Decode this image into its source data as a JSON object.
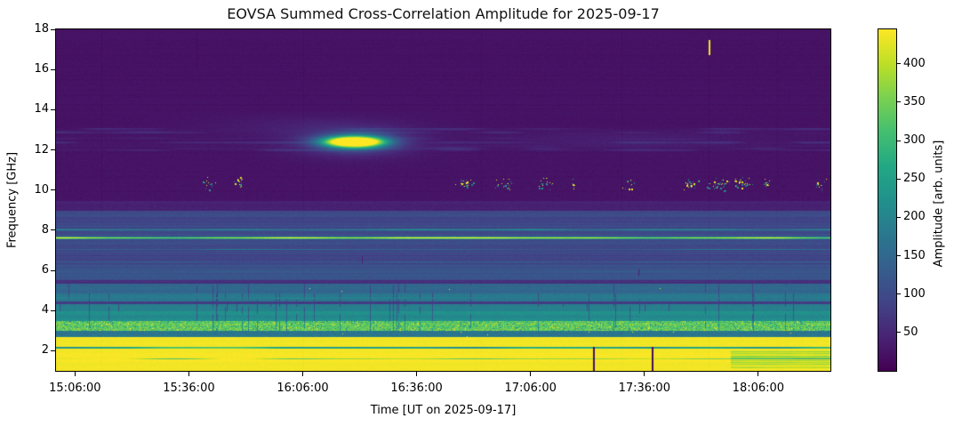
{
  "chart_data": {
    "type": "heatmap",
    "title": "EOVSA Summed Cross-Correlation Amplitude for 2025-09-17",
    "xlabel": "Time [UT on 2025-09-17]",
    "ylabel": "Frequency [GHz]",
    "colormap": {
      "name": "viridis",
      "stops": [
        [
          0,
          "#440154"
        ],
        [
          0.1,
          "#482475"
        ],
        [
          0.2,
          "#414487"
        ],
        [
          0.3,
          "#355f8d"
        ],
        [
          0.4,
          "#2a788e"
        ],
        [
          0.5,
          "#21918c"
        ],
        [
          0.6,
          "#22a884"
        ],
        [
          0.7,
          "#44bf70"
        ],
        [
          0.8,
          "#7ad151"
        ],
        [
          0.9,
          "#bddf26"
        ],
        [
          1,
          "#fde725"
        ]
      ]
    },
    "colorbar": {
      "label": "Amplitude [arb. units]",
      "ticks": [
        50,
        100,
        150,
        200,
        250,
        300,
        350,
        400
      ],
      "range": [
        0,
        445
      ]
    },
    "x_ticks": [
      {
        "label": "15:06:00",
        "t": 5
      },
      {
        "label": "15:36:00",
        "t": 35
      },
      {
        "label": "16:06:00",
        "t": 65
      },
      {
        "label": "16:36:00",
        "t": 95
      },
      {
        "label": "17:06:00",
        "t": 125
      },
      {
        "label": "17:36:00",
        "t": 155
      },
      {
        "label": "18:06:00",
        "t": 185
      }
    ],
    "x_span_min": 204,
    "y_ticks": [
      2,
      4,
      6,
      8,
      10,
      12,
      14,
      16,
      18
    ],
    "y_range": [
      1,
      18
    ],
    "grid": false,
    "seed": 7,
    "bands": [
      {
        "hi": 18.0,
        "lo": 13.1,
        "a": 22,
        "rj": 2.5,
        "cj": 4
      },
      {
        "hi": 13.1,
        "lo": 11.95,
        "a": 26,
        "rj": 3,
        "cj": 5,
        "patch": 42
      },
      {
        "hi": 11.95,
        "lo": 9.45,
        "a": 24,
        "rj": 2.5,
        "cj": 5
      },
      {
        "hi": 9.45,
        "lo": 8.95,
        "a": 40,
        "rj": 5,
        "cj": 6
      },
      {
        "hi": 8.95,
        "lo": 8.1,
        "a": 95,
        "rj": 13,
        "cj": 8
      },
      {
        "hi": 8.1,
        "lo": 7.3,
        "a": 103,
        "rj": 11,
        "cj": 8
      },
      {
        "hi": 7.3,
        "lo": 6.25,
        "a": 95,
        "rj": 11,
        "cj": 8
      },
      {
        "hi": 6.25,
        "lo": 5.5,
        "a": 112,
        "rj": 13,
        "cj": 8
      },
      {
        "hi": 5.5,
        "lo": 5.35,
        "a": 62,
        "rj": 5,
        "cj": 6
      },
      {
        "hi": 5.35,
        "lo": 4.85,
        "a": 148,
        "rj": 12,
        "cj": 10,
        "vl": {
          "p": 0.02,
          "m": 0.6
        }
      },
      {
        "hi": 4.85,
        "lo": 4.45,
        "a": 178,
        "rj": 10,
        "cj": 10,
        "vl": {
          "p": 0.05,
          "m": 0.55
        }
      },
      {
        "hi": 4.45,
        "lo": 4.3,
        "a": 80,
        "rj": 5,
        "cj": 8
      },
      {
        "hi": 4.3,
        "lo": 3.95,
        "a": 192,
        "rj": 10,
        "cj": 10,
        "vl": {
          "p": 0.06,
          "m": 0.55
        }
      },
      {
        "hi": 3.95,
        "lo": 3.5,
        "a": 215,
        "rj": 12,
        "cj": 12,
        "vl": {
          "p": 0.05,
          "m": 0.6
        }
      },
      {
        "hi": 3.5,
        "lo": 3.0,
        "a": 330,
        "rj": 15,
        "cj": 40,
        "sp": true,
        "vl": {
          "p": 0.04,
          "m": 0.65
        }
      },
      {
        "hi": 3.0,
        "lo": 2.7,
        "a": 180,
        "rj": 10,
        "cj": 20
      },
      {
        "hi": 2.7,
        "lo": 0.9,
        "a": 438,
        "rj": 5,
        "cj": 5
      }
    ],
    "h_lines": [
      {
        "f": 8.03,
        "hw": 0.07,
        "a": 205,
        "cj": 25
      },
      {
        "f": 7.62,
        "hw": 0.08,
        "a": 400,
        "cj": 30
      },
      {
        "f": 7.05,
        "hw": 0.05,
        "a": 170,
        "cj": 20
      },
      {
        "f": 6.42,
        "hw": 0.05,
        "a": 140,
        "cj": 15
      },
      {
        "f": 5.95,
        "hw": 0.06,
        "a": 142,
        "cj": 15
      },
      {
        "f": 4.62,
        "hw": 0.05,
        "a": 205,
        "cj": 15
      },
      {
        "f": 2.15,
        "hw": 0.05,
        "a": 390,
        "cj": 8,
        "mode": "dark"
      },
      {
        "f": 1.6,
        "hw": 0.04,
        "a": 398,
        "cj": 8,
        "mode": "dark"
      }
    ],
    "features": {
      "ellipses": [
        {
          "t": 78.5,
          "f": 12.42,
          "rx": 16,
          "ry": 0.75,
          "a": 35
        },
        {
          "t": 78.5,
          "f": 12.42,
          "rx": 11,
          "ry": 0.5,
          "a": 80
        },
        {
          "t": 78.5,
          "f": 12.42,
          "rx": 8.5,
          "ry": 0.33,
          "a": 190
        },
        {
          "t": 78.5,
          "f": 12.42,
          "rx": 6.5,
          "ry": 0.22,
          "a": 480
        },
        {
          "t": 66,
          "f": 13.25,
          "rx": 26,
          "ry": 0.45,
          "a": 16
        },
        {
          "t": 150,
          "f": 12.5,
          "rx": 30,
          "ry": 0.4,
          "a": 14
        }
      ],
      "speckle_clusters": [
        {
          "t": 40,
          "w": 2.5,
          "n": 12
        },
        {
          "t": 48.5,
          "w": 2.5,
          "n": 16
        },
        {
          "t": 108,
          "w": 4,
          "n": 26
        },
        {
          "t": 118,
          "w": 3.5,
          "n": 20
        },
        {
          "t": 129,
          "w": 3,
          "n": 16
        },
        {
          "t": 136,
          "w": 1.5,
          "n": 6
        },
        {
          "t": 151,
          "w": 2.5,
          "n": 14
        },
        {
          "t": 167,
          "w": 4,
          "n": 20
        },
        {
          "t": 174,
          "w": 5,
          "n": 34
        },
        {
          "t": 181,
          "w": 4,
          "n": 28
        },
        {
          "t": 187,
          "w": 2,
          "n": 10
        },
        {
          "t": 201,
          "w": 2.5,
          "n": 12
        }
      ],
      "speckle_freq": 10.32,
      "speckle_h": 0.4,
      "speckle_yellow_frac": 0.45,
      "row_dots": [
        {
          "f": 5.1,
          "h": 0.1,
          "density": 0.012,
          "a": 430
        },
        {
          "f": 2.85,
          "h": 0.12,
          "density": 0.02,
          "a": 440
        }
      ],
      "v_dashes": [
        {
          "t": 172,
          "f1": 16.75,
          "f2": 17.45,
          "a": 440,
          "w": 2,
          "mode": "set"
        },
        {
          "t": 141.5,
          "f1": 0.9,
          "f2": 2.2,
          "a": 15,
          "w": 2,
          "mode": "set"
        },
        {
          "t": 157,
          "f1": 0.9,
          "f2": 2.2,
          "a": 15,
          "w": 2,
          "mode": "set"
        },
        {
          "t": 80.6,
          "f1": 6.4,
          "f2": 6.7,
          "a": 40,
          "w": 1,
          "mode": "set"
        },
        {
          "t": 153.5,
          "f1": 5.8,
          "f2": 6.05,
          "a": 40,
          "w": 1,
          "mode": "set"
        },
        {
          "t": 37,
          "f1": 16.0,
          "f2": 18.0,
          "a": -8,
          "w": 1,
          "mode": "add"
        }
      ],
      "v_cols": [
        {
          "t": 12,
          "da": -7
        },
        {
          "t": 65,
          "da": -6
        },
        {
          "t": 112,
          "da": -6
        },
        {
          "t": 149,
          "da": -7
        },
        {
          "t": 172,
          "da": -9
        },
        {
          "t": 190,
          "da": -6
        }
      ],
      "regions": [
        {
          "t1": 178,
          "t2": 204,
          "f1": 1.15,
          "f2": 2.0,
          "da": -75
        }
      ]
    }
  }
}
